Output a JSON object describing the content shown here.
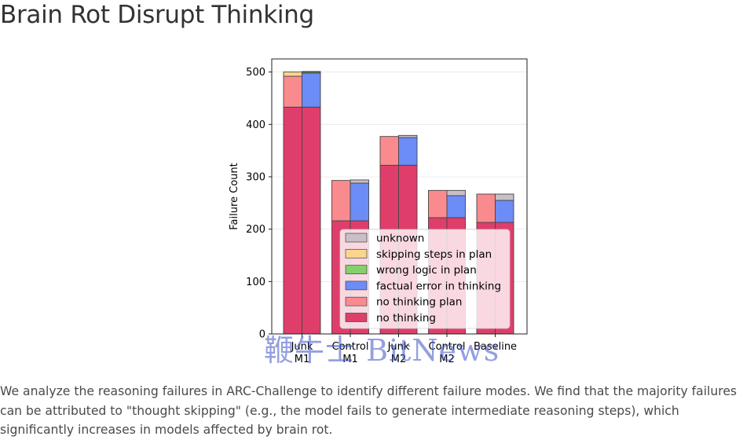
{
  "page": {
    "title": "Brain Rot Disrupt Thinking",
    "caption": "We analyze the reasoning failures in ARC-Challenge to identify different failure modes. We find that the majority failures can be attributed to \"thought skipping\" (e.g., the model fails to generate intermediate reasoning steps), which significantly increases in models affected by brain rot.",
    "watermark": "鞭牛士 BitNews"
  },
  "chart_data": {
    "type": "bar",
    "subtype": "stacked, two bars per group",
    "title": "",
    "xlabel": "",
    "ylabel": "Failure Count",
    "ylim": [
      0,
      525
    ],
    "yticks": [
      0,
      100,
      200,
      300,
      400,
      500
    ],
    "grid": "horizontal",
    "legend_position": "lower-right",
    "categories": [
      [
        "Junk",
        "M1"
      ],
      [
        "Control",
        "M1"
      ],
      [
        "Junk",
        "M2"
      ],
      [
        "Control",
        "M2"
      ],
      [
        "Baseline"
      ]
    ],
    "legend": [
      "unknown",
      "skipping steps in plan",
      "wrong logic in plan",
      "factual error in thinking",
      "no thinking plan",
      "no thinking"
    ],
    "colors": {
      "unknown": "#c9c0c6",
      "skipping steps in plan": "#fcd58c",
      "wrong logic in plan": "#85cf6d",
      "factual error in thinking": "#6c8cf6",
      "no thinking plan": "#f98b8f",
      "no thinking": "#df3e6b"
    },
    "bars": {
      "left": [
        [
          {
            "cat": "no thinking",
            "v": 433
          },
          {
            "cat": "no thinking plan",
            "v": 59
          },
          {
            "cat": "skipping steps in plan",
            "v": 8
          }
        ],
        [
          {
            "cat": "no thinking",
            "v": 216
          },
          {
            "cat": "no thinking plan",
            "v": 77
          }
        ],
        [
          {
            "cat": "no thinking",
            "v": 322
          },
          {
            "cat": "no thinking plan",
            "v": 55
          }
        ],
        [
          {
            "cat": "no thinking",
            "v": 222
          },
          {
            "cat": "no thinking plan",
            "v": 52
          }
        ],
        [
          {
            "cat": "no thinking",
            "v": 213
          },
          {
            "cat": "no thinking plan",
            "v": 54
          }
        ]
      ],
      "right": [
        [
          {
            "cat": "no thinking",
            "v": 433
          },
          {
            "cat": "factual error in thinking",
            "v": 65
          },
          {
            "cat": "wrong logic in plan",
            "v": 2
          },
          {
            "cat": "unknown",
            "v": 1
          }
        ],
        [
          {
            "cat": "no thinking",
            "v": 216
          },
          {
            "cat": "factual error in thinking",
            "v": 72
          },
          {
            "cat": "unknown",
            "v": 6
          }
        ],
        [
          {
            "cat": "no thinking",
            "v": 322
          },
          {
            "cat": "factual error in thinking",
            "v": 53
          },
          {
            "cat": "unknown",
            "v": 4
          }
        ],
        [
          {
            "cat": "no thinking",
            "v": 222
          },
          {
            "cat": "factual error in thinking",
            "v": 42
          },
          {
            "cat": "unknown",
            "v": 10
          }
        ],
        [
          {
            "cat": "no thinking",
            "v": 213
          },
          {
            "cat": "factual error in thinking",
            "v": 42
          },
          {
            "cat": "unknown",
            "v": 12
          }
        ]
      ]
    }
  }
}
